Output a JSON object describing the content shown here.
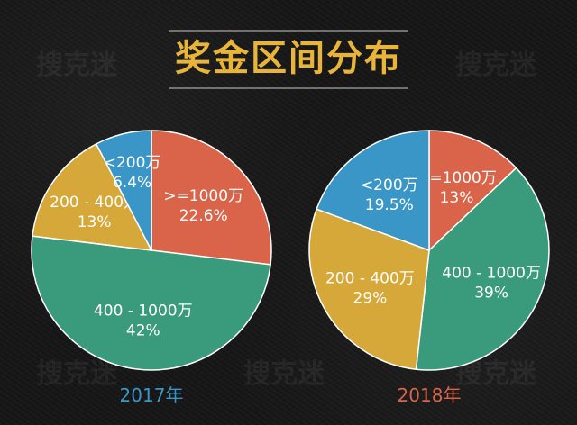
{
  "title": "奖金区间分布",
  "watermark": "搜克迷",
  "colors": {
    "orange": "#d9644a",
    "green": "#3a9b7c",
    "yellow": "#d6a83a",
    "blue": "#3a96c7",
    "title": "#e8b53a",
    "year_2017": "#3a96c7",
    "year_2018": "#d9644a"
  },
  "chart_data": [
    {
      "type": "pie",
      "title": "2017年",
      "slices": [
        {
          "name": ">=1000万",
          "value": 22.6,
          "label": "22.6%",
          "color": "#d9644a"
        },
        {
          "name": "400 - 1000万",
          "value": 42,
          "label": "42%",
          "color": "#3a9b7c"
        },
        {
          "name": "200 - 400万",
          "value": 13,
          "label": "13%",
          "color": "#d6a83a"
        },
        {
          "name": "<200万",
          "value": 6.4,
          "label": "6.4%",
          "color": "#3a96c7"
        }
      ]
    },
    {
      "type": "pie",
      "title": "2018年",
      "slices": [
        {
          "name": ">=1000万",
          "value": 13,
          "label": "13%",
          "color": "#d9644a"
        },
        {
          "name": "400 - 1000万",
          "value": 39,
          "label": "39%",
          "color": "#3a9b7c"
        },
        {
          "name": "200 - 400万",
          "value": 29,
          "label": "29%",
          "color": "#d6a83a"
        },
        {
          "name": "<200万",
          "value": 19.5,
          "label": "19.5%",
          "color": "#3a96c7"
        }
      ]
    }
  ]
}
